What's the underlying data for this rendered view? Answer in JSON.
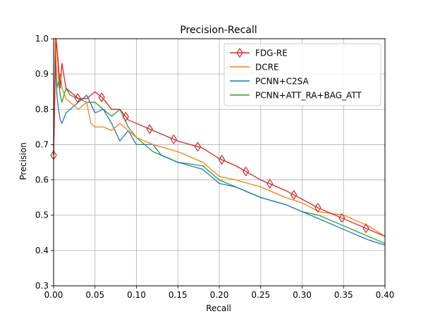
{
  "chart_data": {
    "type": "line",
    "title": "Precision-Recall",
    "xlabel": "Recall",
    "ylabel": "Precision",
    "xlim": [
      0.0,
      0.4
    ],
    "ylim": [
      0.3,
      1.0
    ],
    "xticks": [
      "0.00",
      "0.05",
      "0.10",
      "0.15",
      "0.20",
      "0.25",
      "0.30",
      "0.35",
      "0.40"
    ],
    "yticks": [
      "0.3",
      "0.4",
      "0.5",
      "0.6",
      "0.7",
      "0.8",
      "0.9",
      "1.0"
    ],
    "grid": true,
    "legend_position": "top-right",
    "series": [
      {
        "name": "FDG-RE",
        "color": "#d62728",
        "marker": "thin-diamond",
        "marker_x": [
          0.0,
          0.029,
          0.058,
          0.087,
          0.116,
          0.145,
          0.174,
          0.203,
          0.232,
          0.261,
          0.29,
          0.319,
          0.348,
          0.377
        ],
        "x": [
          0.0,
          0.003,
          0.005,
          0.008,
          0.01,
          0.015,
          0.02,
          0.03,
          0.04,
          0.05,
          0.06,
          0.07,
          0.08,
          0.09,
          0.1,
          0.12,
          0.15,
          0.18,
          0.2,
          0.22,
          0.25,
          0.28,
          0.3,
          0.32,
          0.35,
          0.38,
          0.4
        ],
        "y": [
          0.67,
          1.0,
          0.95,
          0.86,
          0.93,
          0.86,
          0.85,
          0.83,
          0.83,
          0.85,
          0.83,
          0.8,
          0.8,
          0.77,
          0.76,
          0.74,
          0.71,
          0.69,
          0.66,
          0.64,
          0.6,
          0.57,
          0.545,
          0.52,
          0.49,
          0.46,
          0.44
        ]
      },
      {
        "name": "DCRE",
        "color": "#ff7f0e",
        "marker": "none",
        "x": [
          0.0,
          0.002,
          0.004,
          0.006,
          0.008,
          0.01,
          0.015,
          0.02,
          0.03,
          0.04,
          0.045,
          0.05,
          0.06,
          0.07,
          0.08,
          0.09,
          0.1,
          0.12,
          0.15,
          0.18,
          0.2,
          0.22,
          0.25,
          0.28,
          0.3,
          0.32,
          0.35,
          0.38,
          0.4
        ],
        "y": [
          0.67,
          1.0,
          0.98,
          0.88,
          0.9,
          0.86,
          0.83,
          0.82,
          0.8,
          0.82,
          0.76,
          0.75,
          0.75,
          0.74,
          0.76,
          0.74,
          0.72,
          0.7,
          0.68,
          0.65,
          0.61,
          0.6,
          0.58,
          0.55,
          0.535,
          0.51,
          0.5,
          0.47,
          0.44
        ]
      },
      {
        "name": "PCNN+C2SA",
        "color": "#1f77b4",
        "marker": "none",
        "x": [
          0.0,
          0.002,
          0.004,
          0.006,
          0.008,
          0.01,
          0.015,
          0.02,
          0.03,
          0.04,
          0.05,
          0.06,
          0.07,
          0.08,
          0.09,
          0.1,
          0.11,
          0.12,
          0.13,
          0.15,
          0.18,
          0.2,
          0.22,
          0.25,
          0.28,
          0.3,
          0.32,
          0.35,
          0.38,
          0.4
        ],
        "y": [
          0.67,
          0.99,
          0.84,
          0.8,
          0.77,
          0.76,
          0.79,
          0.8,
          0.82,
          0.84,
          0.79,
          0.8,
          0.76,
          0.71,
          0.74,
          0.7,
          0.7,
          0.7,
          0.67,
          0.65,
          0.63,
          0.59,
          0.58,
          0.55,
          0.53,
          0.51,
          0.49,
          0.46,
          0.43,
          0.415
        ]
      },
      {
        "name": "PCNN+ATT_RA+BAG_ATT",
        "color": "#2ca02c",
        "marker": "none",
        "x": [
          0.0,
          0.002,
          0.004,
          0.006,
          0.008,
          0.01,
          0.015,
          0.02,
          0.03,
          0.04,
          0.05,
          0.06,
          0.07,
          0.08,
          0.09,
          0.1,
          0.12,
          0.15,
          0.18,
          0.2,
          0.22,
          0.25,
          0.28,
          0.3,
          0.32,
          0.35,
          0.38,
          0.4
        ],
        "y": [
          0.67,
          0.98,
          0.86,
          0.88,
          0.84,
          0.82,
          0.86,
          0.84,
          0.83,
          0.82,
          0.82,
          0.8,
          0.78,
          0.8,
          0.75,
          0.72,
          0.68,
          0.65,
          0.64,
          0.6,
          0.58,
          0.55,
          0.53,
          0.51,
          0.5,
          0.47,
          0.44,
          0.42
        ]
      }
    ]
  }
}
